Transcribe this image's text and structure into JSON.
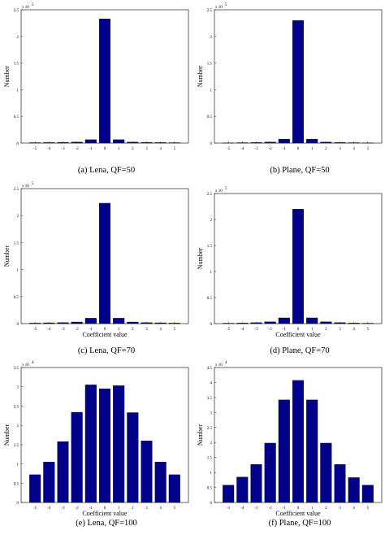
{
  "chart_data": [
    {
      "type": "bar",
      "caption": "(a) Lena, QF=50",
      "categories": [
        "-5",
        "-4",
        "-3",
        "-2",
        "-1",
        "0",
        "1",
        "2",
        "3",
        "4",
        "5"
      ],
      "values": [
        0.008,
        0.01,
        0.014,
        0.02,
        0.065,
        2.33,
        0.065,
        0.02,
        0.014,
        0.01,
        0.008
      ],
      "xlabel": "",
      "ylabel": "Number",
      "ylim": [
        0,
        2.5
      ],
      "yticks": [
        "0",
        "0.5",
        "1",
        "1.5",
        "2",
        "2.5"
      ],
      "yexponent_base": "x 10",
      "yexponent_power": "5",
      "color": "#00008b"
    },
    {
      "type": "bar",
      "caption": "(b) Plane, QF=50",
      "categories": [
        "-5",
        "-4",
        "-3",
        "-2",
        "-1",
        "0",
        "1",
        "2",
        "3",
        "4",
        "5"
      ],
      "values": [
        0.005,
        0.008,
        0.012,
        0.02,
        0.075,
        2.3,
        0.075,
        0.02,
        0.012,
        0.008,
        0.005
      ],
      "xlabel": "",
      "ylabel": "Number",
      "ylim": [
        0,
        2.5
      ],
      "yticks": [
        "0",
        "0.5",
        "1",
        "1.5",
        "2",
        "2.5"
      ],
      "yexponent_base": "x 10",
      "yexponent_power": "5",
      "color": "#00008b"
    },
    {
      "type": "bar",
      "caption": "(c) Lena, QF=70",
      "categories": [
        "-5",
        "-4",
        "-3",
        "-2",
        "-1",
        "0",
        "1",
        "2",
        "3",
        "4",
        "5"
      ],
      "values": [
        0.01,
        0.015,
        0.02,
        0.03,
        0.1,
        2.23,
        0.1,
        0.03,
        0.02,
        0.015,
        0.01
      ],
      "xlabel": "Coefficient value",
      "ylabel": "Number",
      "ylim": [
        0,
        2.5
      ],
      "yticks": [
        "0",
        "0.5",
        "1",
        "1.5",
        "2",
        "2.5"
      ],
      "yexponent_base": "x 10",
      "yexponent_power": "5",
      "color": "#00008b"
    },
    {
      "type": "bar",
      "caption": "(d) Plane, QF=70",
      "categories": [
        "-5",
        "-4",
        "-3",
        "-2",
        "-1",
        "0",
        "1",
        "2",
        "3",
        "4",
        "5"
      ],
      "values": [
        0.008,
        0.012,
        0.02,
        0.035,
        0.11,
        2.2,
        0.11,
        0.035,
        0.02,
        0.012,
        0.008
      ],
      "xlabel": "Coefficient value",
      "ylabel": "Number",
      "ylim": [
        0,
        2.5
      ],
      "yticks": [
        "0",
        "0.5",
        "1",
        "1.5",
        "2",
        "2.5"
      ],
      "yexponent_base": "x 10",
      "yexponent_power": "5",
      "color": "#00008b"
    },
    {
      "type": "bar",
      "caption": "(e) Lena, QF=100",
      "categories": [
        "-5",
        "-4",
        "-3",
        "-2",
        "-1",
        "0",
        "1",
        "2",
        "3",
        "4",
        "5"
      ],
      "values": [
        0.72,
        1.05,
        1.58,
        2.34,
        3.05,
        2.95,
        3.03,
        2.33,
        1.6,
        1.05,
        0.72
      ],
      "xlabel": "Coefficient value",
      "ylabel": "Number",
      "ylim": [
        0,
        3.5
      ],
      "yticks": [
        "0",
        "0.5",
        "1",
        "1.5",
        "2",
        "2.5",
        "3",
        "3.5"
      ],
      "yexponent_base": "x 10",
      "yexponent_power": "4",
      "color": "#00008b"
    },
    {
      "type": "bar",
      "caption": "(f) Plane, QF=100",
      "categories": [
        "-5",
        "-4",
        "-3",
        "-2",
        "-1",
        "0",
        "1",
        "2",
        "3",
        "4",
        "5"
      ],
      "values": [
        0.58,
        0.85,
        1.27,
        1.98,
        3.42,
        4.07,
        3.42,
        1.98,
        1.27,
        0.83,
        0.58
      ],
      "xlabel": "Coefficient value",
      "ylabel": "Number",
      "ylim": [
        0,
        4.5
      ],
      "yticks": [
        "0",
        "0.5",
        "1",
        "1.5",
        "2",
        "2.5",
        "3",
        "3.5",
        "4",
        "4.5"
      ],
      "yexponent_base": "x 10",
      "yexponent_power": "4",
      "color": "#00008b"
    }
  ]
}
